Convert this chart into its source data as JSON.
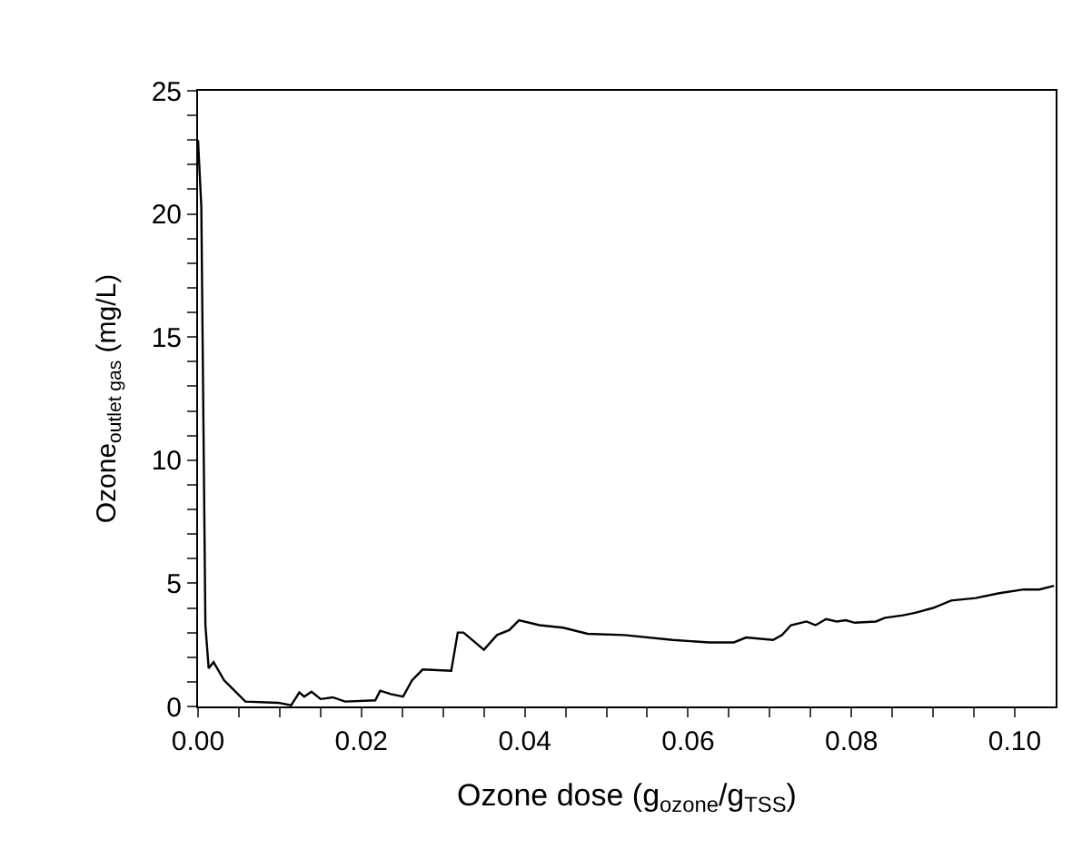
{
  "chart_data": {
    "type": "line",
    "xlabel": "Ozone dose (g$_{ozone}$/g$_{TSS}$)",
    "ylabel": "Ozone$_{outlet gas}$ (mg/L)",
    "x": [
      0,
      0.0004,
      0.0009,
      0.0013,
      0.0019,
      0.0032,
      0.0058,
      0.0098,
      0.0114,
      0.0124,
      0.013,
      0.0139,
      0.015,
      0.0165,
      0.018,
      0.0217,
      0.0223,
      0.0236,
      0.0251,
      0.0262,
      0.0275,
      0.031,
      0.0318,
      0.0325,
      0.035,
      0.0366,
      0.0381,
      0.0393,
      0.0418,
      0.0447,
      0.0477,
      0.0522,
      0.0581,
      0.0626,
      0.0656,
      0.0671,
      0.0704,
      0.0715,
      0.0726,
      0.0745,
      0.0756,
      0.0769,
      0.0782,
      0.0793,
      0.0804,
      0.083,
      0.0841,
      0.0863,
      0.0878,
      0.09,
      0.0922,
      0.0952,
      0.0981,
      0.1011,
      0.103,
      0.1048
    ],
    "series": [
      {
        "color": "#000000",
        "values": [
          23.0,
          20.3,
          3.3,
          1.55,
          1.8,
          1.06,
          0.2,
          0.15,
          0.05,
          0.57,
          0.4,
          0.6,
          0.3,
          0.37,
          0.2,
          0.25,
          0.64,
          0.5,
          0.4,
          1.06,
          1.5,
          1.45,
          3.0,
          3.0,
          2.3,
          2.9,
          3.1,
          3.5,
          3.3,
          3.2,
          2.95,
          2.9,
          2.7,
          2.6,
          2.6,
          2.8,
          2.7,
          2.9,
          3.3,
          3.45,
          3.3,
          3.55,
          3.45,
          3.5,
          3.4,
          3.45,
          3.6,
          3.7,
          3.8,
          4.0,
          4.3,
          4.4,
          4.6,
          4.75,
          4.75,
          4.9
        ]
      }
    ],
    "xlim": [
      0,
      0.105
    ],
    "ylim": [
      0,
      25
    ],
    "xticks": [
      {
        "value": 0,
        "label": "0.00"
      },
      {
        "value": 0.005,
        "label": null
      },
      {
        "value": 0.02,
        "label": "0.02"
      },
      {
        "value": 0.01,
        "label": null
      },
      {
        "value": 0.015,
        "label": null
      },
      {
        "value": 0.025,
        "label": null
      },
      {
        "value": 0.03,
        "label": null
      },
      {
        "value": 0.035,
        "label": null
      },
      {
        "value": 0.04,
        "label": "0.04"
      },
      {
        "value": 0.045,
        "label": null
      },
      {
        "value": 0.05,
        "label": null
      },
      {
        "value": 0.055,
        "label": null
      },
      {
        "value": 0.06,
        "label": "0.06"
      },
      {
        "value": 0.065,
        "label": null
      },
      {
        "value": 0.07,
        "label": null
      },
      {
        "value": 0.075,
        "label": null
      },
      {
        "value": 0.08,
        "label": "0.08"
      },
      {
        "value": 0.085,
        "label": null
      },
      {
        "value": 0.09,
        "label": null
      },
      {
        "value": 0.095,
        "label": null
      },
      {
        "value": 0.1,
        "label": "0.10"
      }
    ],
    "yticks": [
      0,
      5,
      10,
      15,
      20,
      25,
      {
        "value": 1,
        "label": null
      },
      {
        "value": 2,
        "label": null
      },
      {
        "value": 3,
        "label": null
      },
      {
        "value": 4,
        "label": null
      },
      {
        "value": 6,
        "label": null
      },
      {
        "value": 7,
        "label": null
      },
      {
        "value": 8,
        "label": null
      },
      {
        "value": 9,
        "label": null
      },
      {
        "value": 11,
        "label": null
      },
      {
        "value": 12,
        "label": null
      },
      {
        "value": 13,
        "label": null
      },
      {
        "value": 14,
        "label": null
      },
      {
        "value": 16,
        "label": null
      },
      {
        "value": 17,
        "label": null
      },
      {
        "value": 18,
        "label": null
      },
      {
        "value": 19,
        "label": null
      },
      {
        "value": 21,
        "label": null
      },
      {
        "value": 22,
        "label": null
      },
      {
        "value": 23,
        "label": null
      },
      {
        "value": 24,
        "label": null
      }
    ],
    "line_style": "solid",
    "marker": "none"
  }
}
